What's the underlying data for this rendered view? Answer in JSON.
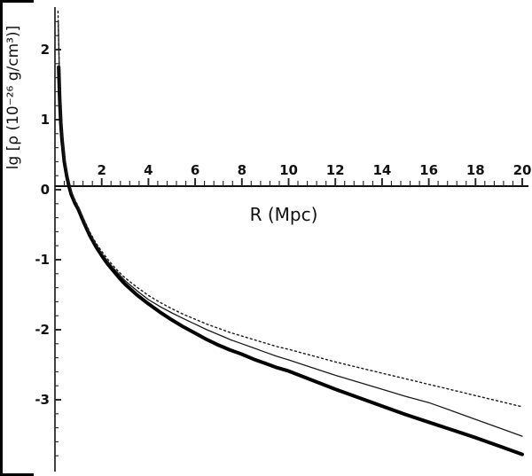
{
  "chart_data": {
    "type": "line",
    "title": "",
    "xlabel": "R (Mpc)",
    "ylabel": "lg [ρ (10⁻²⁶ g/cm³)]",
    "xlim": [
      0,
      20
    ],
    "ylim": [
      -3.9,
      2.6
    ],
    "grid": false,
    "legend_position": "none",
    "axes_cross_at": {
      "x": 0,
      "y": 0
    },
    "x_ticks_labeled": [
      2,
      4,
      6,
      8,
      10,
      12,
      14,
      16,
      18,
      20
    ],
    "x_minor_step": 0.4,
    "y_ticks_labeled": [
      2,
      1,
      0,
      -1,
      -2,
      -3
    ],
    "y_minor_step": 0.2,
    "series": [
      {
        "name": "thick-solid-curve",
        "style": "thick-solid",
        "points": [
          [
            0.16,
            1.75
          ],
          [
            0.2,
            1.3
          ],
          [
            0.25,
            0.95
          ],
          [
            0.3,
            0.72
          ],
          [
            0.4,
            0.4
          ],
          [
            0.5,
            0.2
          ],
          [
            0.6,
            0.05
          ],
          [
            0.7,
            -0.07
          ],
          [
            0.85,
            -0.19
          ],
          [
            1,
            -0.28
          ],
          [
            1.25,
            -0.48
          ],
          [
            1.5,
            -0.66
          ],
          [
            1.75,
            -0.81
          ],
          [
            2,
            -0.94
          ],
          [
            2.25,
            -1.06
          ],
          [
            2.5,
            -1.16
          ],
          [
            2.75,
            -1.26
          ],
          [
            3,
            -1.35
          ],
          [
            3.5,
            -1.5
          ],
          [
            4,
            -1.63
          ],
          [
            4.5,
            -1.75
          ],
          [
            5,
            -1.86
          ],
          [
            5.5,
            -1.96
          ],
          [
            6,
            -2.05
          ],
          [
            6.5,
            -2.14
          ],
          [
            7,
            -2.22
          ],
          [
            7.5,
            -2.29
          ],
          [
            8,
            -2.35
          ],
          [
            8.5,
            -2.42
          ],
          [
            9,
            -2.48
          ],
          [
            9.5,
            -2.54
          ],
          [
            10,
            -2.59
          ],
          [
            11,
            -2.72
          ],
          [
            12,
            -2.85
          ],
          [
            13,
            -2.97
          ],
          [
            14,
            -3.09
          ],
          [
            15,
            -3.21
          ],
          [
            16,
            -3.32
          ],
          [
            17,
            -3.43
          ],
          [
            18,
            -3.54
          ],
          [
            19,
            -3.66
          ],
          [
            20,
            -3.78
          ]
        ]
      },
      {
        "name": "thin-solid-curve",
        "style": "thin-solid",
        "points": [
          [
            0.14,
            2.4
          ],
          [
            0.2,
            1.45
          ],
          [
            0.25,
            1.05
          ],
          [
            0.3,
            0.78
          ],
          [
            0.4,
            0.45
          ],
          [
            0.5,
            0.24
          ],
          [
            0.6,
            0.08
          ],
          [
            0.7,
            -0.04
          ],
          [
            0.85,
            -0.16
          ],
          [
            1,
            -0.26
          ],
          [
            1.25,
            -0.45
          ],
          [
            1.5,
            -0.63
          ],
          [
            1.75,
            -0.78
          ],
          [
            2,
            -0.91
          ],
          [
            2.25,
            -1.02
          ],
          [
            2.5,
            -1.12
          ],
          [
            2.75,
            -1.21
          ],
          [
            3,
            -1.3
          ],
          [
            3.5,
            -1.44
          ],
          [
            4,
            -1.57
          ],
          [
            4.5,
            -1.67
          ],
          [
            5,
            -1.76
          ],
          [
            5.5,
            -1.84
          ],
          [
            6,
            -1.92
          ],
          [
            6.5,
            -2.0
          ],
          [
            7,
            -2.07
          ],
          [
            7.5,
            -2.14
          ],
          [
            8,
            -2.2
          ],
          [
            8.5,
            -2.26
          ],
          [
            9,
            -2.32
          ],
          [
            9.5,
            -2.38
          ],
          [
            10,
            -2.43
          ],
          [
            11,
            -2.54
          ],
          [
            12,
            -2.65
          ],
          [
            13,
            -2.75
          ],
          [
            14,
            -2.85
          ],
          [
            15,
            -2.95
          ],
          [
            16,
            -3.04
          ],
          [
            17,
            -3.16
          ],
          [
            18,
            -3.28
          ],
          [
            19,
            -3.4
          ],
          [
            20,
            -3.52
          ]
        ]
      },
      {
        "name": "dotted-curve",
        "style": "dotted",
        "points": [
          [
            0.13,
            2.55
          ],
          [
            0.2,
            1.5
          ],
          [
            0.25,
            1.1
          ],
          [
            0.3,
            0.82
          ],
          [
            0.4,
            0.48
          ],
          [
            0.5,
            0.27
          ],
          [
            0.6,
            0.1
          ],
          [
            0.7,
            -0.02
          ],
          [
            0.85,
            -0.14
          ],
          [
            1,
            -0.24
          ],
          [
            1.25,
            -0.43
          ],
          [
            1.5,
            -0.61
          ],
          [
            1.75,
            -0.76
          ],
          [
            2,
            -0.88
          ],
          [
            2.25,
            -0.99
          ],
          [
            2.5,
            -1.09
          ],
          [
            2.75,
            -1.18
          ],
          [
            3,
            -1.26
          ],
          [
            3.5,
            -1.39
          ],
          [
            4,
            -1.51
          ],
          [
            4.5,
            -1.61
          ],
          [
            5,
            -1.7
          ],
          [
            5.5,
            -1.78
          ],
          [
            6,
            -1.85
          ],
          [
            6.5,
            -1.92
          ],
          [
            7,
            -1.98
          ],
          [
            7.5,
            -2.04
          ],
          [
            8,
            -2.09
          ],
          [
            8.5,
            -2.14
          ],
          [
            9,
            -2.19
          ],
          [
            9.5,
            -2.24
          ],
          [
            10,
            -2.28
          ],
          [
            11,
            -2.37
          ],
          [
            12,
            -2.46
          ],
          [
            13,
            -2.54
          ],
          [
            14,
            -2.62
          ],
          [
            15,
            -2.7
          ],
          [
            16,
            -2.78
          ],
          [
            17,
            -2.86
          ],
          [
            18,
            -2.94
          ],
          [
            19,
            -3.02
          ],
          [
            20,
            -3.1
          ]
        ]
      }
    ]
  }
}
